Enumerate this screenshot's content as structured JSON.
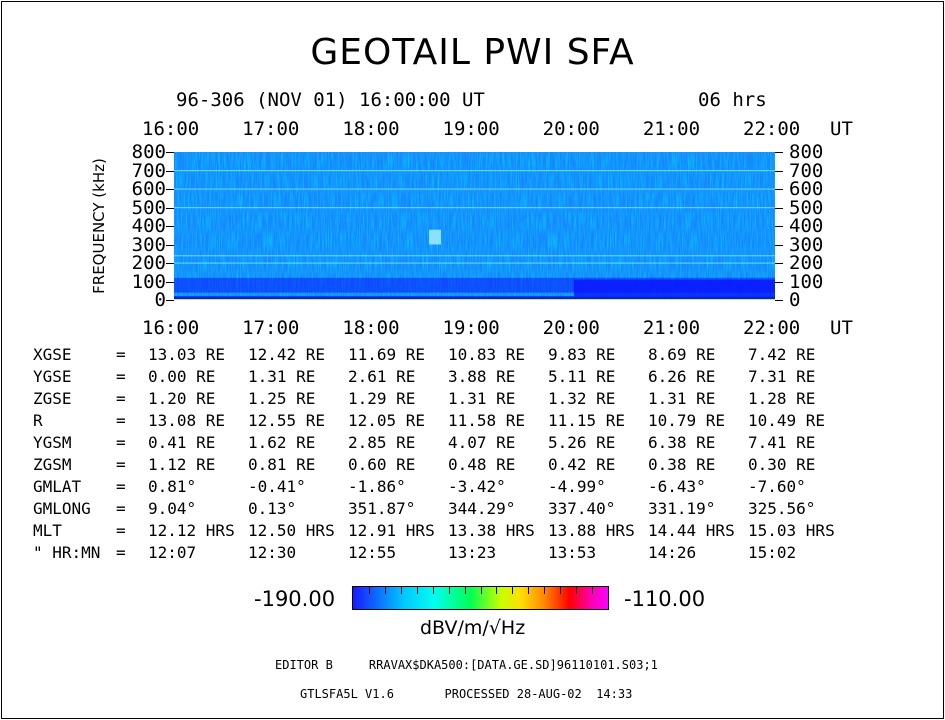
{
  "title": "GEOTAIL PWI SFA",
  "subtitle": "96-306 (NOV 01) 16:00:00 UT",
  "duration": "06 hrs",
  "x_unit": "UT",
  "chart_data": {
    "type": "heatmap",
    "ylabel": "FREQUENCY (kHz)",
    "x_ticks": [
      "16:00",
      "17:00",
      "18:00",
      "19:00",
      "20:00",
      "21:00",
      "22:00"
    ],
    "y_ticks": [
      "800",
      "700",
      "600",
      "500",
      "400",
      "300",
      "200",
      "100",
      "0"
    ],
    "ylim": [
      0,
      800
    ],
    "colorbar": {
      "min": "-190.00",
      "max": "-110.00",
      "unit": "dBV/m/√Hz",
      "colors": [
        "#1a1aff",
        "#00c8ff",
        "#00ffee",
        "#00ff55",
        "#c8ff00",
        "#ffdd00",
        "#ff8800",
        "#ff0000",
        "#ff00aa",
        "#ff00ff"
      ]
    }
  },
  "ephemeris": [
    {
      "label": "XGSE",
      "eq": "=",
      "values": [
        "13.03 RE",
        "12.42 RE",
        "11.69 RE",
        "10.83 RE",
        "9.83 RE",
        "8.69 RE",
        "7.42 RE"
      ]
    },
    {
      "label": "YGSE",
      "eq": "=",
      "values": [
        "0.00 RE",
        "1.31 RE",
        "2.61 RE",
        "3.88 RE",
        "5.11 RE",
        "6.26 RE",
        "7.31 RE"
      ]
    },
    {
      "label": "ZGSE",
      "eq": "=",
      "values": [
        "1.20 RE",
        "1.25 RE",
        "1.29 RE",
        "1.31 RE",
        "1.32 RE",
        "1.31 RE",
        "1.28 RE"
      ]
    },
    {
      "label": "R",
      "eq": "=",
      "values": [
        "13.08 RE",
        "12.55 RE",
        "12.05 RE",
        "11.58 RE",
        "11.15 RE",
        "10.79 RE",
        "10.49 RE"
      ]
    },
    {
      "label": "YGSM",
      "eq": "=",
      "values": [
        "0.41 RE",
        "1.62 RE",
        "2.85 RE",
        "4.07 RE",
        "5.26 RE",
        "6.38 RE",
        "7.41 RE"
      ]
    },
    {
      "label": "ZGSM",
      "eq": "=",
      "values": [
        "1.12 RE",
        "0.81 RE",
        "0.60 RE",
        "0.48 RE",
        "0.42 RE",
        "0.38 RE",
        "0.30 RE"
      ]
    },
    {
      "label": "GMLAT",
      "eq": "=",
      "values": [
        "0.81°",
        "-0.41°",
        "-1.86°",
        "-3.42°",
        "-4.99°",
        "-6.43°",
        "-7.60°"
      ]
    },
    {
      "label": "GMLONG",
      "eq": "=",
      "values": [
        "9.04°",
        "0.13°",
        "351.87°",
        "344.29°",
        "337.40°",
        "331.19°",
        "325.56°"
      ]
    },
    {
      "label": "MLT",
      "eq": "=",
      "values": [
        "12.12 HRS",
        "12.50 HRS",
        "12.91 HRS",
        "13.38 HRS",
        "13.88 HRS",
        "14.44 HRS",
        "15.03 HRS"
      ]
    },
    {
      "label": "\" HR:MN",
      "eq": "=",
      "values": [
        "12:07",
        "12:30",
        "12:55",
        "13:23",
        "13:53",
        "14:26",
        "15:02"
      ]
    }
  ],
  "footer": {
    "line1": "EDITOR B     RRAVAX$DKA500:[DATA.GE.SD]96110101.S03;1",
    "line2": "GTLSFA5L V1.6       PROCESSED 28-AUG-02  14:33"
  }
}
